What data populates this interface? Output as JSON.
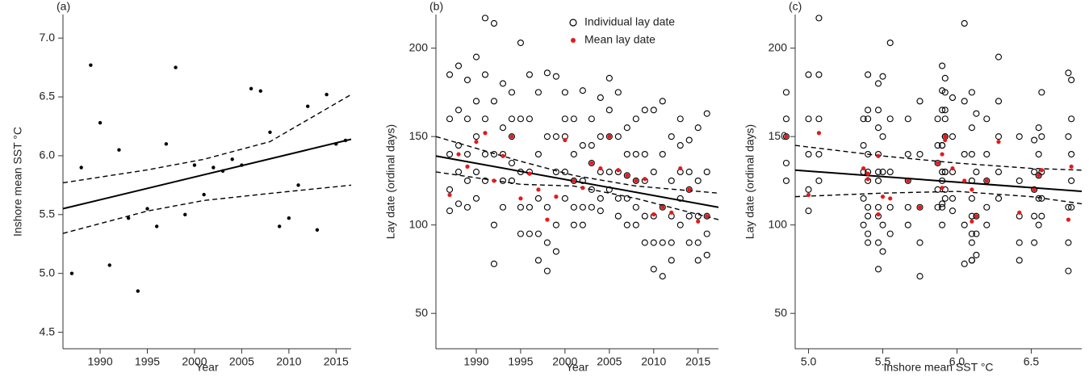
{
  "chart_data": [
    {
      "type": "scatter",
      "tag": "(a)",
      "xlabel": "Year",
      "ylabel": "Inshore mean SST °C",
      "xlim": [
        1986.06,
        2016.6
      ],
      "ylim": [
        4.36,
        7.2
      ],
      "xticks": [
        1990,
        1995,
        2000,
        2005,
        2010,
        2015
      ],
      "yticks": [
        {
          "value": 4.5,
          "label": "4.5"
        },
        {
          "value": 5,
          "label": "5.0"
        },
        5.5,
        {
          "value": 6,
          "label": "6.0"
        },
        6.5,
        {
          "value": 7,
          "label": "7.0"
        }
      ],
      "series": [
        {
          "color": "#000000",
          "x": [
            1987,
            1988,
            1989,
            1990,
            1991,
            1992,
            1993,
            1994,
            1995,
            1996,
            1997,
            1998,
            1999,
            2000,
            2001,
            2002,
            2003,
            2004,
            2005,
            2006,
            2007,
            2008,
            2009,
            2010,
            2011,
            2012,
            2013,
            2014,
            2015,
            2016
          ],
          "values": [
            5.0,
            5.9,
            6.77,
            6.28,
            5.07,
            6.05,
            5.47,
            4.85,
            5.55,
            5.4,
            6.1,
            6.75,
            5.5,
            5.92,
            5.67,
            5.9,
            5.87,
            5.97,
            5.92,
            6.57,
            6.55,
            6.2,
            5.4,
            5.47,
            5.75,
            6.42,
            5.37,
            6.52,
            6.1,
            6.13
          ]
        }
      ],
      "lines": [
        {
          "style": "solid",
          "x": [
            1986.06,
            2016.6
          ],
          "values": [
            5.55,
            6.14
          ]
        },
        {
          "style": "dashed",
          "x": [
            1986.06,
            1995,
            2001,
            2008,
            2016.6
          ],
          "values": [
            5.77,
            5.88,
            5.97,
            6.12,
            6.52
          ]
        },
        {
          "style": "dashed",
          "x": [
            1986.06,
            1995,
            2001,
            2008,
            2016.6
          ],
          "values": [
            5.34,
            5.53,
            5.62,
            5.68,
            5.75
          ]
        }
      ]
    },
    {
      "type": "scatter",
      "tag": "(b)",
      "xlabel": "Year",
      "ylabel": "Lay date (ordinal days)",
      "xlim": [
        1985.45,
        2017.3
      ],
      "ylim": [
        30,
        219
      ],
      "xticks": [
        1990,
        1995,
        2000,
        2005,
        2010,
        2015
      ],
      "yticks": [
        50,
        100,
        150,
        200
      ],
      "series": [
        {
          "name": "Individual lay date",
          "color": "#000000",
          "marker": "open",
          "x": [
            1987,
            1988,
            1989,
            1990,
            1991,
            1992,
            1993,
            1994,
            1995,
            1996,
            1997,
            1998,
            1999,
            2000,
            2001,
            2002,
            2003,
            2004,
            2005,
            2006,
            2007,
            2008,
            2009,
            2010,
            2011,
            2012,
            2013,
            2014,
            2015,
            2016
          ],
          "values": [
            [
              185,
              160,
              140,
              120,
              108
            ],
            [
              190,
              165,
              145,
              130,
              112
            ],
            [
              182,
              160,
              140,
              125,
              110
            ],
            [
              195,
              170,
              150,
              130,
              115
            ],
            [
              217,
              185,
              160,
              140,
              125
            ],
            [
              214,
              170,
              140,
              100,
              78
            ],
            [
              180,
              155,
              140,
              125,
              110
            ],
            [
              175,
              160,
              150,
              135,
              125
            ],
            [
              203,
              160,
              130,
              110,
              95
            ],
            [
              185,
              160,
              130,
              110,
              95
            ],
            [
              175,
              140,
              115,
              95,
              80
            ],
            [
              186,
              150,
              110,
              90,
              74
            ],
            [
              184,
              150,
              130,
              100,
              85
            ],
            [
              175,
              160,
              150,
              130,
              115
            ],
            [
              160,
              140,
              125,
              110,
              100
            ],
            [
              176,
              145,
              125,
              110,
              100
            ],
            [
              160,
              145,
              135,
              120,
              110
            ],
            [
              172,
              150,
              130,
              115,
              108
            ],
            [
              183,
              165,
              150,
              130,
              120
            ],
            [
              175,
              150,
              130,
              115,
              105
            ],
            [
              155,
              140,
              128,
              115,
              100
            ],
            [
              160,
              140,
              125,
              110,
              100
            ],
            [
              165,
              140,
              125,
              105,
              90
            ],
            [
              165,
              130,
              105,
              90,
              75
            ],
            [
              170,
              140,
              110,
              90,
              71
            ],
            [
              150,
              125,
              105,
              90,
              80
            ],
            [
              160,
              145,
              130,
              115,
              100
            ],
            [
              148,
              130,
              120,
              105,
              90
            ],
            [
              155,
              125,
              105,
              90,
              80
            ],
            [
              163,
              130,
              105,
              95,
              83
            ]
          ]
        },
        {
          "name": "Mean lay date",
          "color": "#e31a1c",
          "marker": "filled",
          "x": [
            1987,
            1988,
            1989,
            1990,
            1991,
            1992,
            1993,
            1994,
            1995,
            1996,
            1997,
            1998,
            1999,
            2000,
            2001,
            2002,
            2003,
            2004,
            2005,
            2006,
            2007,
            2008,
            2009,
            2010,
            2011,
            2012,
            2013,
            2014,
            2015,
            2016
          ],
          "values": [
            117,
            140,
            133,
            147,
            152,
            125,
            139,
            150,
            115,
            129,
            120,
            103,
            116,
            148,
            125,
            121,
            135,
            132,
            150,
            131,
            128,
            125,
            126,
            106,
            110,
            107,
            132,
            120,
            102,
            105
          ]
        }
      ],
      "lines": [
        {
          "style": "solid",
          "x": [
            1985.45,
            2017.3
          ],
          "values": [
            139,
            110
          ]
        },
        {
          "style": "dashed",
          "x": [
            1985.45,
            1995,
            2001,
            2008,
            2017.3
          ],
          "values": [
            150,
            136,
            128,
            122,
            118
          ]
        },
        {
          "style": "dashed",
          "x": [
            1985.45,
            1995,
            2001,
            2008,
            2017.3
          ],
          "values": [
            130,
            123,
            122,
            115,
            103
          ]
        }
      ]
    },
    {
      "type": "scatter",
      "tag": "(c)",
      "xlabel": "Inshore mean SST °C",
      "ylabel": "Lay date (ordinal days)",
      "xlim": [
        4.91,
        6.84
      ],
      "ylim": [
        30,
        219
      ],
      "xticks": [
        {
          "value": 5,
          "label": "5.0"
        },
        5.5,
        {
          "value": 6,
          "label": "6.0"
        },
        6.5
      ],
      "yticks": [
        50,
        100,
        150,
        200
      ],
      "series": [
        {
          "color": "#000000",
          "marker": "open",
          "x": [
            5.0,
            5.9,
            6.77,
            6.28,
            5.07,
            6.05,
            5.47,
            4.85,
            5.55,
            5.4,
            6.1,
            6.75,
            5.5,
            5.92,
            5.67,
            5.9,
            5.87,
            5.97,
            5.92,
            6.57,
            6.55,
            6.2,
            5.4,
            5.47,
            5.75,
            6.42,
            5.37,
            6.52,
            6.1,
            6.13
          ],
          "values": [
            [
              185,
              160,
              140,
              120,
              108
            ],
            [
              190,
              165,
              145,
              130,
              112
            ],
            [
              182,
              160,
              140,
              125,
              110
            ],
            [
              195,
              170,
              150,
              130,
              115
            ],
            [
              217,
              185,
              160,
              140,
              125
            ],
            [
              214,
              170,
              140,
              100,
              78
            ],
            [
              180,
              155,
              140,
              125,
              110
            ],
            [
              175,
              160,
              150,
              135,
              125
            ],
            [
              203,
              160,
              130,
              110,
              95
            ],
            [
              185,
              160,
              130,
              110,
              95
            ],
            [
              175,
              140,
              115,
              95,
              80
            ],
            [
              186,
              150,
              110,
              90,
              74
            ],
            [
              184,
              150,
              130,
              100,
              85
            ],
            [
              175,
              160,
              150,
              130,
              115
            ],
            [
              160,
              140,
              125,
              110,
              100
            ],
            [
              176,
              145,
              125,
              110,
              100
            ],
            [
              160,
              145,
              135,
              120,
              110
            ],
            [
              172,
              150,
              130,
              115,
              108
            ],
            [
              183,
              165,
              150,
              130,
              120
            ],
            [
              175,
              150,
              130,
              115,
              105
            ],
            [
              155,
              140,
              128,
              115,
              100
            ],
            [
              160,
              140,
              125,
              110,
              100
            ],
            [
              165,
              140,
              125,
              105,
              90
            ],
            [
              165,
              130,
              105,
              90,
              75
            ],
            [
              170,
              140,
              110,
              90,
              71
            ],
            [
              150,
              125,
              105,
              90,
              80
            ],
            [
              160,
              145,
              130,
              115,
              100
            ],
            [
              148,
              130,
              120,
              105,
              90
            ],
            [
              155,
              125,
              105,
              90,
              80
            ],
            [
              163,
              130,
              105,
              95,
              83
            ]
          ]
        },
        {
          "color": "#e31a1c",
          "marker": "filled",
          "x": [
            5.0,
            5.9,
            6.77,
            6.28,
            5.07,
            6.05,
            5.47,
            4.85,
            5.55,
            5.4,
            6.1,
            6.75,
            5.5,
            5.92,
            5.67,
            5.9,
            5.87,
            5.97,
            5.92,
            6.57,
            6.55,
            6.2,
            5.4,
            5.47,
            5.75,
            6.42,
            5.37,
            6.52,
            6.1,
            6.13
          ],
          "values": [
            117,
            140,
            133,
            147,
            152,
            125,
            139,
            150,
            115,
            129,
            120,
            103,
            116,
            148,
            125,
            121,
            135,
            132,
            150,
            131,
            128,
            125,
            126,
            106,
            110,
            107,
            132,
            120,
            102,
            105
          ]
        }
      ],
      "lines": [
        {
          "style": "solid",
          "x": [
            4.91,
            6.84
          ],
          "values": [
            131,
            119
          ]
        },
        {
          "style": "dashed",
          "x": [
            4.91,
            5.5,
            6.0,
            6.5,
            6.84
          ],
          "values": [
            145,
            139,
            135,
            132,
            131
          ]
        },
        {
          "style": "dashed",
          "x": [
            4.91,
            5.5,
            6.0,
            6.5,
            6.84
          ],
          "values": [
            116,
            118,
            119,
            116,
            112
          ]
        }
      ]
    }
  ]
}
